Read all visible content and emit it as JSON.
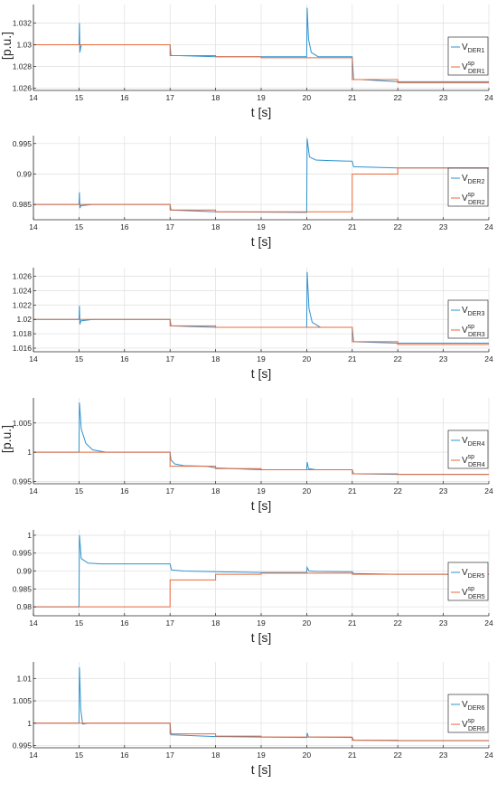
{
  "colors": {
    "measured": "#2f93d1",
    "setpoint": "#e8683a",
    "grid": "#e3e3e3",
    "axis": "#262626"
  },
  "chart_data": [
    {
      "type": "line",
      "xlabel": "t [s]",
      "ylabel": "[p.u.]",
      "xlim": [
        14,
        24
      ],
      "xticks": [
        "14",
        "15",
        "16",
        "17",
        "18",
        "19",
        "20",
        "21",
        "22",
        "23",
        "24"
      ],
      "ylim": [
        1.0258,
        1.0337
      ],
      "yticks": [
        {
          "value": 1.026,
          "label": "1.026"
        },
        {
          "value": 1.028,
          "label": "1.028"
        },
        {
          "value": 1.03,
          "label": "1.03"
        },
        {
          "value": 1.032,
          "label": "1.032"
        }
      ],
      "grid": true,
      "legend_position": "right",
      "series": [
        {
          "name": "V",
          "sub": "DER1",
          "sup": "",
          "role": "measured",
          "x": [
            14,
            15,
            15.01,
            15.02,
            15.04,
            15.06,
            15.3,
            17,
            17.02,
            17.2,
            18,
            19,
            20,
            20.01,
            20.04,
            20.1,
            20.25,
            20.5,
            21,
            21.03,
            21.2,
            22,
            24
          ],
          "y": [
            1.03,
            1.03,
            1.032,
            1.0293,
            1.0298,
            1.03,
            1.03,
            1.03,
            1.029,
            1.029,
            1.0289,
            1.0289,
            1.0289,
            1.0334,
            1.0305,
            1.0293,
            1.0289,
            1.0289,
            1.0289,
            1.0268,
            1.0268,
            1.0266,
            1.0266
          ]
        },
        {
          "name": "V",
          "sub": "DER1",
          "sup": "sp",
          "role": "setpoint",
          "x": [
            14,
            17,
            17,
            18,
            18,
            19,
            19,
            21,
            21,
            22,
            22,
            24
          ],
          "y": [
            1.03,
            1.03,
            1.029,
            1.029,
            1.0289,
            1.0289,
            1.0288,
            1.0288,
            1.0268,
            1.0268,
            1.0265,
            1.0265
          ]
        }
      ]
    },
    {
      "type": "line",
      "xlabel": "t [s]",
      "ylabel": "",
      "xlim": [
        14,
        24
      ],
      "xticks": [
        "14",
        "15",
        "16",
        "17",
        "18",
        "19",
        "20",
        "21",
        "22",
        "23",
        "24"
      ],
      "ylim": [
        0.9825,
        0.9963
      ],
      "yticks": [
        {
          "value": 0.985,
          "label": "0.985"
        },
        {
          "value": 0.99,
          "label": "0.99"
        },
        {
          "value": 0.995,
          "label": "0.995"
        }
      ],
      "grid": true,
      "legend_position": "right",
      "series": [
        {
          "name": "V",
          "sub": "DER2",
          "sup": "",
          "role": "measured",
          "x": [
            14,
            15,
            15.01,
            15.02,
            15.04,
            15.3,
            17,
            17.02,
            18,
            20,
            20.01,
            20.06,
            20.2,
            20.5,
            21,
            21.03,
            22,
            24
          ],
          "y": [
            0.985,
            0.985,
            0.987,
            0.9844,
            0.9848,
            0.985,
            0.985,
            0.9841,
            0.9838,
            0.9837,
            0.9958,
            0.9928,
            0.9923,
            0.9922,
            0.9921,
            0.9912,
            0.991,
            0.991
          ]
        },
        {
          "name": "V",
          "sub": "DER2",
          "sup": "sp",
          "role": "setpoint",
          "x": [
            14,
            17,
            17,
            18,
            18,
            21,
            21,
            22,
            22,
            24
          ],
          "y": [
            0.985,
            0.985,
            0.9841,
            0.9841,
            0.9838,
            0.9838,
            0.99,
            0.99,
            0.991,
            0.991
          ]
        }
      ]
    },
    {
      "type": "line",
      "xlabel": "t [s]",
      "ylabel": "",
      "xlim": [
        14,
        24
      ],
      "xticks": [
        "14",
        "15",
        "16",
        "17",
        "18",
        "19",
        "20",
        "21",
        "22",
        "23",
        "24"
      ],
      "ylim": [
        1.0155,
        1.0272
      ],
      "yticks": [
        {
          "value": 1.016,
          "label": "1.016"
        },
        {
          "value": 1.018,
          "label": "1.018"
        },
        {
          "value": 1.02,
          "label": "1.02"
        },
        {
          "value": 1.022,
          "label": "1.022"
        },
        {
          "value": 1.024,
          "label": "1.024"
        },
        {
          "value": 1.026,
          "label": "1.026"
        }
      ],
      "grid": true,
      "legend_position": "right",
      "series": [
        {
          "name": "V",
          "sub": "DER3",
          "sup": "",
          "role": "measured",
          "x": [
            14,
            15,
            15.01,
            15.02,
            15.04,
            15.3,
            17,
            17.02,
            18,
            20,
            20.01,
            20.05,
            20.12,
            20.3,
            21,
            21.03,
            22,
            24
          ],
          "y": [
            1.02,
            1.02,
            1.0219,
            1.0193,
            1.0198,
            1.02,
            1.02,
            1.0191,
            1.0189,
            1.0189,
            1.0266,
            1.0215,
            1.0196,
            1.0189,
            1.0189,
            1.0169,
            1.0167,
            1.0167
          ]
        },
        {
          "name": "V",
          "sub": "DER3",
          "sup": "sp",
          "role": "setpoint",
          "x": [
            14,
            17,
            17,
            18,
            18,
            21,
            21,
            22,
            22,
            24
          ],
          "y": [
            1.02,
            1.02,
            1.0191,
            1.0191,
            1.0189,
            1.0189,
            1.0169,
            1.0169,
            1.0165,
            1.0165
          ]
        }
      ]
    },
    {
      "type": "line",
      "xlabel": "t [s]",
      "ylabel": "[p.u.]",
      "xlim": [
        14,
        24
      ],
      "xticks": [
        "14",
        "15",
        "16",
        "17",
        "18",
        "19",
        "20",
        "21",
        "22",
        "23",
        "24"
      ],
      "ylim": [
        0.9946,
        1.0093
      ],
      "yticks": [
        {
          "value": 0.995,
          "label": "0.995"
        },
        {
          "value": 1.0,
          "label": "1"
        },
        {
          "value": 1.005,
          "label": "1.005"
        }
      ],
      "grid": true,
      "legend_position": "right",
      "series": [
        {
          "name": "V",
          "sub": "DER4",
          "sup": "",
          "role": "measured",
          "x": [
            14,
            15,
            15.01,
            15.05,
            15.15,
            15.3,
            15.6,
            16,
            17,
            17.02,
            17.1,
            17.3,
            17.8,
            18,
            19,
            20,
            20.01,
            20.04,
            20.2,
            21,
            21.03,
            22,
            24
          ],
          "y": [
            1.0,
            1.0,
            1.0085,
            1.004,
            1.0015,
            1.0004,
            1.0,
            1.0,
            1.0,
            0.9987,
            0.998,
            0.9977,
            0.9976,
            0.9973,
            0.997,
            0.997,
            0.9983,
            0.9972,
            0.997,
            0.997,
            0.9963,
            0.9962,
            0.9962
          ]
        },
        {
          "name": "V",
          "sub": "DER4",
          "sup": "sp",
          "role": "setpoint",
          "x": [
            14,
            17,
            17,
            18,
            18,
            19,
            19,
            21,
            21,
            22,
            22,
            24
          ],
          "y": [
            1.0,
            1.0,
            0.9976,
            0.9976,
            0.9972,
            0.9972,
            0.997,
            0.997,
            0.9963,
            0.9963,
            0.9962,
            0.9962
          ]
        }
      ]
    },
    {
      "type": "line",
      "xlabel": "t [s]",
      "ylabel": "",
      "xlim": [
        14,
        24
      ],
      "xticks": [
        "14",
        "15",
        "16",
        "17",
        "18",
        "19",
        "20",
        "21",
        "22",
        "23",
        "24"
      ],
      "ylim": [
        0.9775,
        1.0015
      ],
      "yticks": [
        {
          "value": 0.98,
          "label": "0.98"
        },
        {
          "value": 0.985,
          "label": "0.985"
        },
        {
          "value": 0.99,
          "label": "0.99"
        },
        {
          "value": 0.995,
          "label": "0.995"
        },
        {
          "value": 1.0,
          "label": "1"
        }
      ],
      "grid": true,
      "legend_position": "right",
      "series": [
        {
          "name": "V",
          "sub": "DER5",
          "sup": "",
          "role": "measured",
          "x": [
            14,
            14.99,
            15,
            15.01,
            15.05,
            15.2,
            15.5,
            17,
            17.03,
            17.3,
            18,
            19,
            20,
            20.01,
            20.05,
            20.2,
            21,
            21.03,
            22,
            24
          ],
          "y": [
            0.98,
            0.98,
            0.98,
            1.0,
            0.9935,
            0.9922,
            0.992,
            0.992,
            0.9903,
            0.99,
            0.9898,
            0.9896,
            0.9896,
            0.991,
            0.99,
            0.9899,
            0.9898,
            0.9893,
            0.9891,
            0.9891
          ]
        },
        {
          "name": "V",
          "sub": "DER5",
          "sup": "sp",
          "role": "setpoint",
          "x": [
            14,
            17,
            17,
            18,
            18,
            19,
            19,
            21,
            21,
            22,
            22,
            24
          ],
          "y": [
            0.98,
            0.98,
            0.9875,
            0.9875,
            0.9891,
            0.9891,
            0.9894,
            0.9894,
            0.9891,
            0.9891,
            0.9891,
            0.9891
          ]
        }
      ]
    },
    {
      "type": "line",
      "xlabel": "t [s]",
      "ylabel": "",
      "xlim": [
        14,
        24
      ],
      "xticks": [
        "14",
        "15",
        "16",
        "17",
        "18",
        "19",
        "20",
        "21",
        "22",
        "23",
        "24"
      ],
      "ylim": [
        0.9945,
        1.0137
      ],
      "yticks": [
        {
          "value": 0.995,
          "label": "0.995"
        },
        {
          "value": 1.0,
          "label": "1"
        },
        {
          "value": 1.005,
          "label": "1.005"
        },
        {
          "value": 1.01,
          "label": "1.01"
        }
      ],
      "grid": true,
      "legend_position": "right",
      "series": [
        {
          "name": "V",
          "sub": "DER6",
          "sup": "",
          "role": "measured",
          "x": [
            14,
            15,
            15.01,
            15.04,
            15.08,
            15.2,
            17,
            17.02,
            18,
            20,
            20.01,
            20.04,
            21,
            21.03,
            22,
            24
          ],
          "y": [
            1.0,
            1.0,
            1.0125,
            1.003,
            0.9998,
            1.0,
            1.0,
            0.9974,
            0.997,
            0.9968,
            0.9978,
            0.9969,
            0.9968,
            0.9962,
            0.9961,
            0.9961
          ]
        },
        {
          "name": "V",
          "sub": "DER6",
          "sup": "sp",
          "role": "setpoint",
          "x": [
            14,
            17,
            17,
            18,
            18,
            19,
            19,
            21,
            21,
            22,
            22,
            24
          ],
          "y": [
            1.0,
            1.0,
            0.9976,
            0.9976,
            0.9971,
            0.9971,
            0.9969,
            0.9969,
            0.9962,
            0.9962,
            0.9961,
            0.9961
          ]
        }
      ]
    }
  ]
}
